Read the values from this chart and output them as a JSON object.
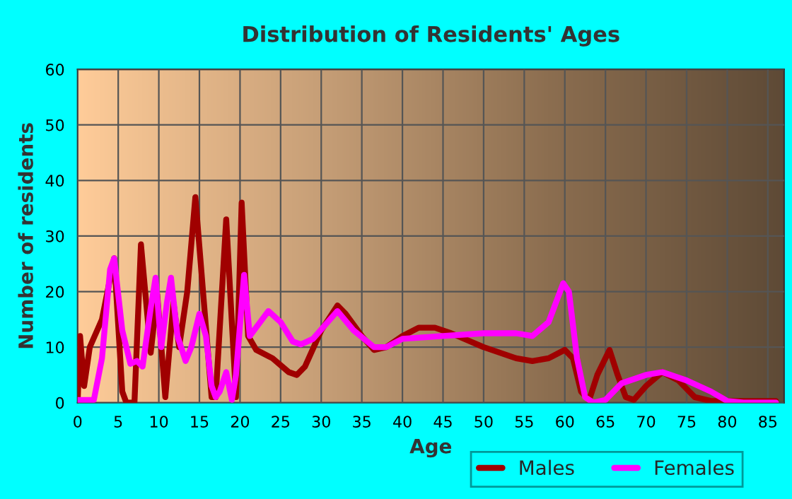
{
  "chart_data": {
    "type": "line",
    "title": "Distribution of Residents' Ages",
    "xlabel": "Age",
    "ylabel": "Number of residents",
    "xlim": [
      0,
      87
    ],
    "xticks": [
      0,
      5,
      10,
      15,
      20,
      25,
      30,
      35,
      40,
      45,
      50,
      55,
      60,
      65,
      70,
      75,
      80,
      85
    ],
    "ylim": [
      0,
      60
    ],
    "yticks": [
      0,
      10,
      20,
      30,
      40,
      50,
      60
    ],
    "grid": true,
    "legend": "bottom",
    "marker": "none",
    "line_style": "solid",
    "series": [
      {
        "name": "Males",
        "color": "#a00000",
        "x": [
          0,
          0.3,
          0.8,
          1.5,
          3,
          4.5,
          5.5,
          6,
          7,
          7.8,
          9,
          9.8,
          10.8,
          11.8,
          12.5,
          13.5,
          14.5,
          16,
          16.5,
          17,
          18.3,
          19.5,
          20.2,
          21,
          22,
          24,
          26,
          27,
          28,
          30,
          32,
          33,
          35,
          36.5,
          38,
          40,
          42,
          44,
          46,
          50,
          54,
          56,
          58,
          60,
          61,
          62,
          63,
          64,
          65.5,
          66.5,
          67.5,
          68.5,
          70,
          72,
          74,
          76,
          78,
          85,
          86
        ],
        "values": [
          0,
          12,
          3,
          10,
          15,
          26,
          2,
          0,
          0,
          28.5,
          9,
          19.5,
          1,
          18,
          10,
          20,
          37,
          10,
          1,
          1,
          33,
          1,
          36,
          12,
          9.5,
          8,
          5.5,
          5,
          6.5,
          13,
          17.5,
          16,
          12,
          9.5,
          10,
          12,
          13.5,
          13.5,
          12.5,
          10,
          8,
          7.5,
          8,
          9.5,
          8,
          2,
          0.5,
          5,
          9.5,
          5,
          1,
          0.5,
          3,
          5.5,
          4,
          1,
          0.3,
          0.3,
          0.3
        ]
      },
      {
        "name": "Females",
        "color": "#ff00ff",
        "x": [
          0,
          2,
          3,
          4,
          4.5,
          5.5,
          6.5,
          7.3,
          8,
          9,
          9.6,
          10.3,
          11,
          11.5,
          12.3,
          13.3,
          14,
          15,
          15.8,
          16.5,
          17,
          17.5,
          18.3,
          19,
          19.5,
          20.5,
          21.2,
          23.5,
          25,
          26.5,
          27.5,
          29,
          32,
          34,
          36.5,
          38,
          40,
          45,
          50,
          54,
          56,
          58,
          59.8,
          60.5,
          61.5,
          62.5,
          63.5,
          65,
          67,
          70,
          72,
          75,
          78,
          80,
          82,
          86
        ],
        "values": [
          0.5,
          0.5,
          8,
          24,
          26,
          13,
          7,
          7.5,
          6.5,
          17,
          22.5,
          10,
          18,
          22.5,
          12,
          7.5,
          10,
          16,
          12,
          3,
          1,
          2,
          5.5,
          0.5,
          5,
          23,
          12,
          16.5,
          14.5,
          11,
          10.5,
          11.5,
          16.5,
          13,
          10,
          10,
          11.5,
          12,
          12.5,
          12.5,
          12,
          14.5,
          21.5,
          20,
          8,
          1,
          0,
          0.5,
          3.5,
          5,
          5.5,
          4,
          2,
          0.3,
          0,
          0
        ]
      }
    ]
  }
}
